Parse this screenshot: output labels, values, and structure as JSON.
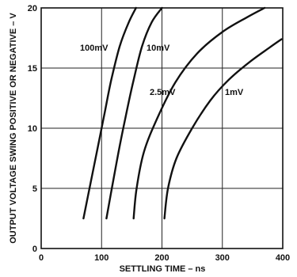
{
  "chart_data": {
    "type": "line",
    "title": "",
    "xlabel": "SETTLING TIME – ns",
    "ylabel": "OUTPUT VOLTAGE SWING POSITIVE OR NEGATIVE – V",
    "xlim": [
      0,
      400
    ],
    "ylim": [
      0,
      20
    ],
    "x_ticks": [
      0,
      100,
      200,
      300,
      400
    ],
    "y_ticks": [
      0,
      5,
      10,
      15,
      20
    ],
    "x_tick_labels": [
      "0",
      "100",
      "200",
      "300",
      "400"
    ],
    "y_tick_labels": [
      "0",
      "5",
      "10",
      "15",
      "20"
    ],
    "grid": true,
    "series": [
      {
        "name": "100mV",
        "points": [
          [
            70,
            2.5
          ],
          [
            80,
            5
          ],
          [
            92,
            8
          ],
          [
            104,
            11
          ],
          [
            116,
            14
          ],
          [
            130,
            16.8
          ],
          [
            145,
            18.8
          ],
          [
            157,
            20
          ]
        ]
      },
      {
        "name": "10mV",
        "points": [
          [
            108,
            2.5
          ],
          [
            117,
            5
          ],
          [
            128,
            8
          ],
          [
            140,
            11
          ],
          [
            153,
            14
          ],
          [
            167,
            16.8
          ],
          [
            183,
            18.8
          ],
          [
            200,
            20
          ]
        ]
      },
      {
        "name": "2.5mV",
        "points": [
          [
            153,
            2.5
          ],
          [
            158,
            5
          ],
          [
            170,
            8
          ],
          [
            192,
            10.8
          ],
          [
            222,
            13.8
          ],
          [
            258,
            16.2
          ],
          [
            300,
            18
          ],
          [
            340,
            19.2
          ],
          [
            370,
            20
          ]
        ]
      },
      {
        "name": "1mV",
        "points": [
          [
            204,
            2.5
          ],
          [
            210,
            5
          ],
          [
            224,
            7.5
          ],
          [
            250,
            10
          ],
          [
            280,
            12.3
          ],
          [
            310,
            14
          ],
          [
            345,
            15.5
          ],
          [
            378,
            16.7
          ],
          [
            398,
            17.4
          ]
        ]
      }
    ],
    "annotations": [
      "100mV",
      "10mV",
      "2.5mV",
      "1mV"
    ]
  }
}
